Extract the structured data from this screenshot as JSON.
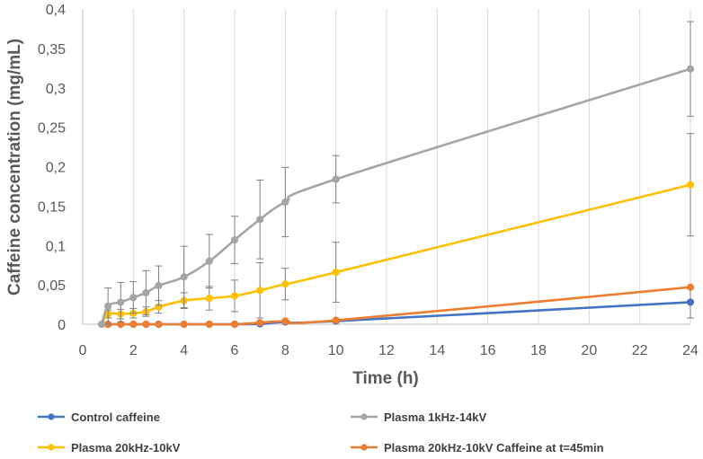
{
  "chart_data": {
    "type": "line",
    "title": "",
    "xlabel": "Time (h)",
    "ylabel": "Caffeine concentration (mg/mL)",
    "xlim": [
      0,
      24
    ],
    "ylim": [
      0,
      0.4
    ],
    "xticks": [
      0,
      2,
      4,
      6,
      8,
      10,
      12,
      14,
      16,
      18,
      20,
      22,
      24
    ],
    "yticks": [
      "0",
      "0,05",
      "0,1",
      "0,15",
      "0,2",
      "0,25",
      "0,3",
      "0,35",
      "0,4"
    ],
    "grid": "vertical",
    "legend_position": "bottom",
    "series": [
      {
        "name": "Control caffeine",
        "color": "#4472C4",
        "points": [
          [
            0.75,
            0
          ],
          [
            1,
            0
          ],
          [
            1.5,
            0
          ],
          [
            2,
            0
          ],
          [
            2.5,
            0
          ],
          [
            3,
            0
          ],
          [
            4,
            0
          ],
          [
            5,
            0
          ],
          [
            6,
            0
          ],
          [
            7,
            0.0005
          ],
          [
            8,
            0.003
          ],
          [
            10,
            0.004
          ],
          [
            24,
            0.028
          ]
        ],
        "errors": [
          0,
          0,
          0,
          0,
          0,
          0,
          0,
          0,
          0,
          0,
          0,
          0,
          0.02
        ]
      },
      {
        "name": "Plasma 1kHz-14kV",
        "color": "#A5A5A5",
        "points": [
          [
            0.75,
            0
          ],
          [
            1,
            0.023
          ],
          [
            1.5,
            0.028
          ],
          [
            2,
            0.034
          ],
          [
            2.5,
            0.04
          ],
          [
            3,
            0.049
          ],
          [
            4,
            0.06
          ],
          [
            5,
            0.08
          ],
          [
            6,
            0.107
          ],
          [
            7,
            0.133
          ],
          [
            8,
            0.155
          ],
          [
            10,
            0.184
          ],
          [
            24,
            0.324
          ]
        ],
        "errors": [
          0,
          0.023,
          0.025,
          0.02,
          0.028,
          0.025,
          0.039,
          0.034,
          0.03,
          0.05,
          0.044,
          0.03,
          0.06
        ]
      },
      {
        "name": "Plasma 20kHz-10kV",
        "color": "#FFC000",
        "points": [
          [
            0.75,
            0
          ],
          [
            1,
            0.013
          ],
          [
            1.5,
            0.013
          ],
          [
            2,
            0.014
          ],
          [
            2.5,
            0.016
          ],
          [
            3,
            0.022
          ],
          [
            4,
            0.03
          ],
          [
            5,
            0.033
          ],
          [
            6,
            0.036
          ],
          [
            7,
            0.043
          ],
          [
            8,
            0.051
          ],
          [
            10,
            0.066
          ],
          [
            24,
            0.177
          ]
        ],
        "errors": [
          0,
          0.005,
          0.006,
          0.006,
          0.006,
          0.008,
          0.01,
          0.015,
          0.02,
          0.035,
          0.02,
          0.038,
          0.065
        ]
      },
      {
        "name": "Plasma 20kHz-10kV Caffeine at t=45min",
        "color": "#ED7D31",
        "points": [
          [
            0.75,
            0
          ],
          [
            1,
            0
          ],
          [
            1.5,
            0
          ],
          [
            2,
            0
          ],
          [
            2.5,
            0
          ],
          [
            3,
            0
          ],
          [
            4,
            0
          ],
          [
            5,
            0
          ],
          [
            6,
            0
          ],
          [
            7,
            0.002
          ],
          [
            8,
            0.004
          ],
          [
            10,
            0.005
          ],
          [
            24,
            0.047
          ]
        ],
        "errors": [
          0,
          0,
          0,
          0,
          0,
          0,
          0,
          0,
          0,
          0,
          0,
          0,
          0
        ]
      }
    ]
  }
}
